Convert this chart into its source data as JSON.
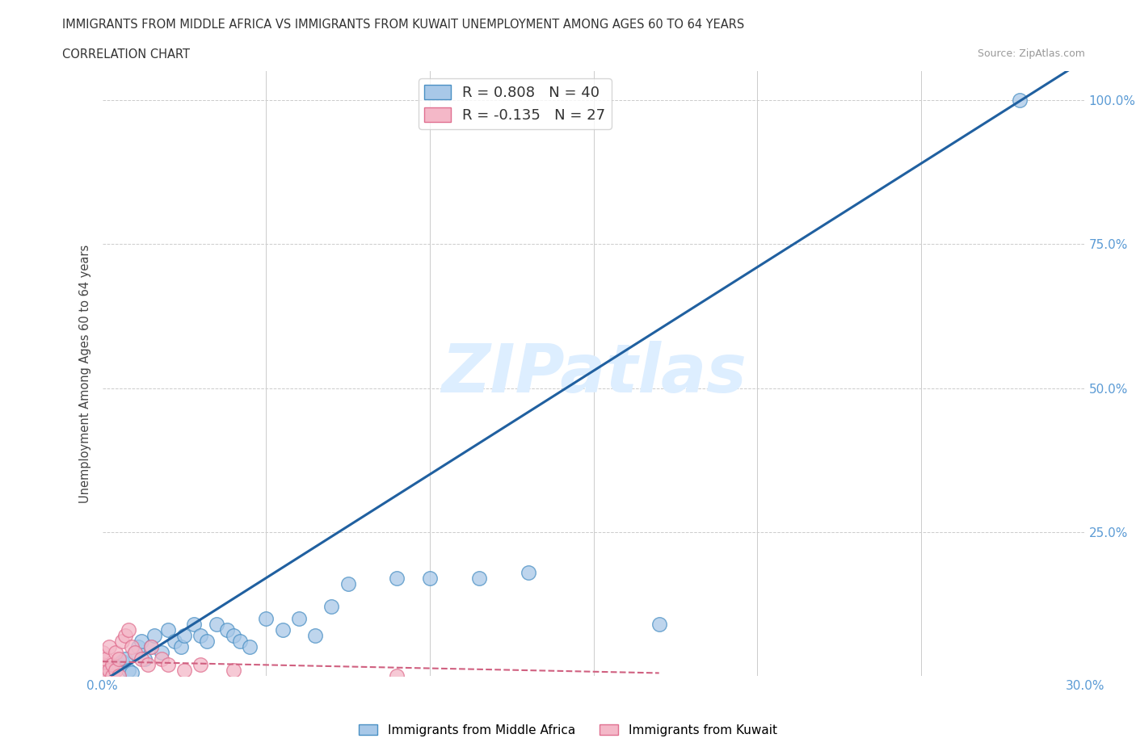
{
  "title_line1": "IMMIGRANTS FROM MIDDLE AFRICA VS IMMIGRANTS FROM KUWAIT UNEMPLOYMENT AMONG AGES 60 TO 64 YEARS",
  "title_line2": "CORRELATION CHART",
  "source": "Source: ZipAtlas.com",
  "ylabel": "Unemployment Among Ages 60 to 64 years",
  "xlim": [
    0.0,
    0.3
  ],
  "ylim": [
    0.0,
    1.05
  ],
  "x_ticks": [
    0.0,
    0.05,
    0.1,
    0.15,
    0.2,
    0.25,
    0.3
  ],
  "x_tick_labels": [
    "0.0%",
    "",
    "",
    "",
    "",
    "",
    "30.0%"
  ],
  "y_ticks": [
    0.0,
    0.25,
    0.5,
    0.75,
    1.0
  ],
  "y_tick_labels": [
    "",
    "25.0%",
    "50.0%",
    "75.0%",
    "100.0%"
  ],
  "R_blue": 0.808,
  "N_blue": 40,
  "R_pink": -0.135,
  "N_pink": 27,
  "blue_color": "#a8c8e8",
  "pink_color": "#f4b8c8",
  "blue_edge_color": "#4a90c4",
  "pink_edge_color": "#e07090",
  "blue_line_color": "#2060a0",
  "pink_line_color": "#d06080",
  "watermark": "ZIPatlas",
  "watermark_color": "#ddeeff",
  "grid_color": "#cccccc",
  "background_color": "#ffffff",
  "legend_label_blue": "Immigrants from Middle Africa",
  "legend_label_pink": "Immigrants from Kuwait",
  "blue_scatter_x": [
    0.0,
    0.002,
    0.003,
    0.004,
    0.005,
    0.006,
    0.007,
    0.008,
    0.009,
    0.01,
    0.011,
    0.012,
    0.013,
    0.015,
    0.016,
    0.018,
    0.02,
    0.022,
    0.024,
    0.025,
    0.028,
    0.03,
    0.032,
    0.035,
    0.038,
    0.04,
    0.042,
    0.045,
    0.05,
    0.055,
    0.06,
    0.065,
    0.07,
    0.075,
    0.09,
    0.1,
    0.115,
    0.13,
    0.17,
    0.28
  ],
  "blue_scatter_y": [
    0.0,
    0.005,
    0.01,
    0.015,
    0.02,
    0.025,
    0.03,
    0.01,
    0.005,
    0.04,
    0.05,
    0.06,
    0.03,
    0.05,
    0.07,
    0.04,
    0.08,
    0.06,
    0.05,
    0.07,
    0.09,
    0.07,
    0.06,
    0.09,
    0.08,
    0.07,
    0.06,
    0.05,
    0.1,
    0.08,
    0.1,
    0.07,
    0.12,
    0.16,
    0.17,
    0.17,
    0.17,
    0.18,
    0.09,
    1.0
  ],
  "pink_scatter_x": [
    0.0,
    0.0,
    0.0,
    0.001,
    0.001,
    0.002,
    0.002,
    0.003,
    0.003,
    0.004,
    0.004,
    0.005,
    0.005,
    0.006,
    0.007,
    0.008,
    0.009,
    0.01,
    0.012,
    0.014,
    0.015,
    0.018,
    0.02,
    0.025,
    0.03,
    0.04,
    0.09
  ],
  "pink_scatter_y": [
    0.0,
    0.02,
    0.04,
    0.0,
    0.03,
    0.01,
    0.05,
    0.0,
    0.02,
    0.01,
    0.04,
    0.0,
    0.03,
    0.06,
    0.07,
    0.08,
    0.05,
    0.04,
    0.03,
    0.02,
    0.05,
    0.03,
    0.02,
    0.01,
    0.02,
    0.01,
    0.0
  ],
  "blue_line_x": [
    0.0,
    0.3
  ],
  "blue_line_y": [
    -0.01,
    1.07
  ],
  "pink_line_x": [
    0.0,
    0.17
  ],
  "pink_line_y": [
    0.025,
    0.005
  ]
}
